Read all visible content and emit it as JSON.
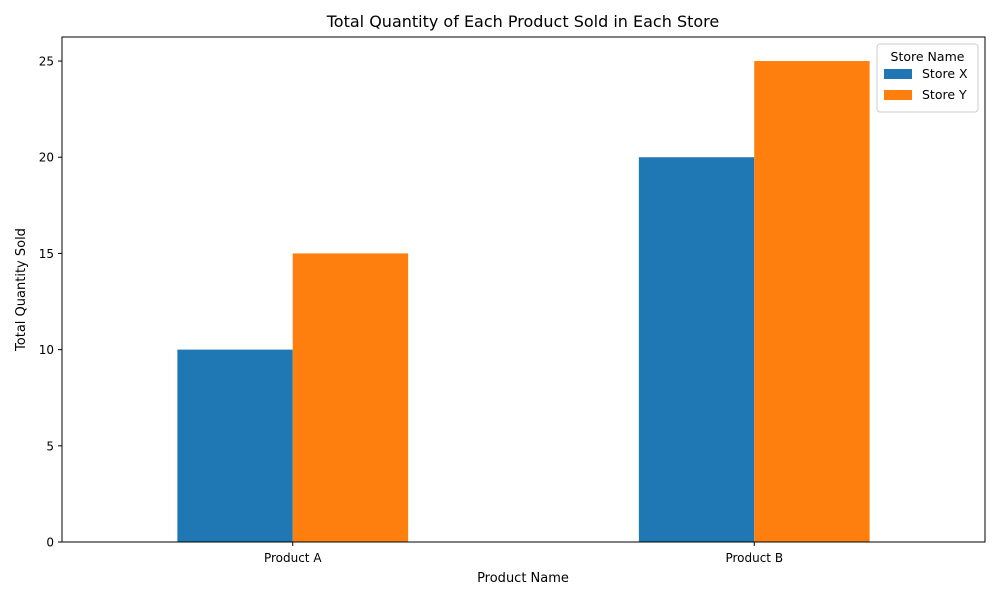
{
  "chart_data": {
    "type": "bar",
    "title": "Total Quantity of Each Product Sold in Each Store",
    "xlabel": "Product Name",
    "ylabel": "Total Quantity Sold",
    "categories": [
      "Product A",
      "Product B"
    ],
    "series": [
      {
        "name": "Store X",
        "values": [
          10,
          20
        ],
        "color": "#1f77b4"
      },
      {
        "name": "Store Y",
        "values": [
          15,
          25
        ],
        "color": "#ff7f0e"
      }
    ],
    "ylim": [
      0,
      26.25
    ],
    "yticks": [
      0,
      5,
      10,
      15,
      20,
      25
    ],
    "grid": false,
    "legend": {
      "title": "Store Name",
      "placement": "top-right"
    }
  }
}
